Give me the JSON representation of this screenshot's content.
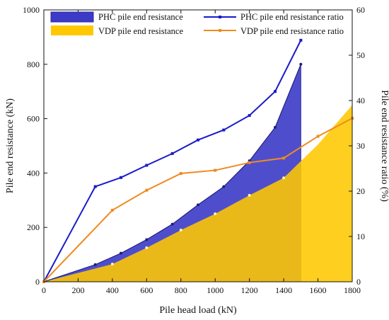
{
  "chart_data": {
    "type": "area",
    "xlabel": "Pile head load (kN)",
    "ylabel_left": "Pile end resistance (kN)",
    "ylabel_right": "Pile end resistance ratio (%)",
    "xlim": [
      0,
      1800
    ],
    "ylim_left": [
      0,
      1000
    ],
    "ylim_right": [
      0,
      60
    ],
    "x_ticks": [
      "0",
      "200",
      "400",
      "600",
      "800",
      "1000",
      "1200",
      "1400",
      "1600",
      "1800"
    ],
    "y_ticks_left": [
      "0",
      "200",
      "400",
      "600",
      "800",
      "1000"
    ],
    "y_ticks_right": [
      "0",
      "10",
      "20",
      "30",
      "40",
      "50",
      "60"
    ],
    "legend": {
      "placement": "top",
      "entries": [
        "PHC pile end resistance",
        "VDP pile end resistance",
        "PHC pile end resistance ratio",
        "VDP pile end resistance ratio"
      ]
    },
    "series": [
      {
        "name": "PHC pile end resistance",
        "axis": "left",
        "style": "area",
        "color": "#3b3bc8",
        "x": [
          0,
          300,
          450,
          600,
          750,
          900,
          1050,
          1200,
          1350,
          1500
        ],
        "values": [
          0,
          63,
          105,
          155,
          212,
          283,
          350,
          445,
          568,
          800
        ]
      },
      {
        "name": "VDP pile end resistance",
        "axis": "left",
        "style": "area",
        "color": "#ffc800",
        "x": [
          0,
          400,
          600,
          800,
          1000,
          1200,
          1400,
          1600,
          1800
        ],
        "values": [
          0,
          65,
          125,
          190,
          250,
          318,
          382,
          505,
          650
        ]
      },
      {
        "name": "PHC pile end resistance ratio",
        "axis": "right",
        "style": "line",
        "color": "#1a1acc",
        "x": [
          0,
          300,
          450,
          600,
          750,
          900,
          1050,
          1200,
          1350,
          1500
        ],
        "values": [
          0,
          21,
          23,
          25.7,
          28.3,
          31.3,
          33.5,
          36.7,
          42,
          53.3
        ]
      },
      {
        "name": "VDP pile end resistance ratio",
        "axis": "right",
        "style": "line",
        "color": "#f08a20",
        "x": [
          0,
          400,
          600,
          800,
          1000,
          1200,
          1400,
          1600,
          1800
        ],
        "values": [
          0,
          15.8,
          20.2,
          23.9,
          24.6,
          26.3,
          27.3,
          32.1,
          36.1
        ]
      }
    ],
    "grid": false
  }
}
